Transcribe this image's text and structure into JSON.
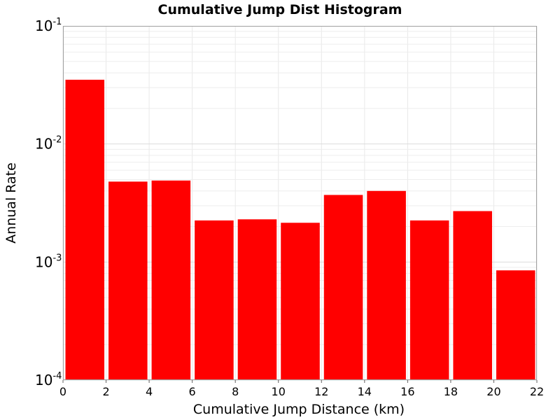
{
  "chart_data": {
    "type": "bar",
    "title": "Cumulative Jump Dist Histogram",
    "xlabel": "Cumulative Jump Distance (km)",
    "ylabel": "Annual Rate",
    "x_ticks": [
      "0",
      "2",
      "4",
      "6",
      "8",
      "10",
      "12",
      "14",
      "16",
      "18",
      "20",
      "22"
    ],
    "y_ticks": [
      {
        "base": "10",
        "exp": "-4",
        "value": 0.0001
      },
      {
        "base": "10",
        "exp": "-3",
        "value": 0.001
      },
      {
        "base": "10",
        "exp": "-2",
        "value": 0.01
      },
      {
        "base": "10",
        "exp": "-1",
        "value": 0.1
      }
    ],
    "xlim": [
      0,
      22
    ],
    "ylim": [
      0.0001,
      0.1
    ],
    "y_scale": "log",
    "grid": true,
    "bar_color": "#ff0000",
    "bars": [
      {
        "x0": 0,
        "x1": 2,
        "value": 0.035
      },
      {
        "x0": 2,
        "x1": 4,
        "value": 0.0048
      },
      {
        "x0": 4,
        "x1": 6,
        "value": 0.0049
      },
      {
        "x0": 6,
        "x1": 8,
        "value": 0.00225
      },
      {
        "x0": 8,
        "x1": 10,
        "value": 0.0023
      },
      {
        "x0": 10,
        "x1": 12,
        "value": 0.00215
      },
      {
        "x0": 12,
        "x1": 14,
        "value": 0.0037
      },
      {
        "x0": 14,
        "x1": 16,
        "value": 0.004
      },
      {
        "x0": 16,
        "x1": 18,
        "value": 0.00225
      },
      {
        "x0": 18,
        "x1": 20,
        "value": 0.0027
      },
      {
        "x0": 20,
        "x1": 22,
        "value": 0.00085
      }
    ]
  }
}
